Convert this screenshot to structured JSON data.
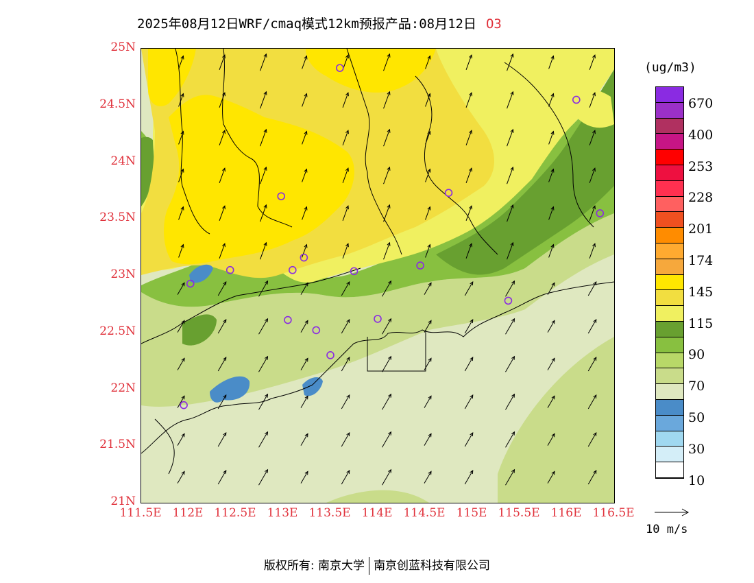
{
  "title": {
    "text": "2025年08月12日WRF/cmaq模式12km预报产品:08月12日",
    "species": "O3"
  },
  "axes": {
    "y_ticks": [
      "25N",
      "24.5N",
      "24N",
      "23.5N",
      "23N",
      "22.5N",
      "22N",
      "21.5N",
      "21N"
    ],
    "x_ticks": [
      "111.5E",
      "112E",
      "112.5E",
      "113E",
      "113.5E",
      "114E",
      "114.5E",
      "115E",
      "115.5E",
      "116E",
      "116.5E"
    ]
  },
  "legend": {
    "units": "(ug/m3)",
    "colors": [
      "#8a2be2",
      "#9b30c8",
      "#b03060",
      "#c71585",
      "#ff0000",
      "#ee1040",
      "#ff3050",
      "#ff6060",
      "#f05020",
      "#ff8c00",
      "#ffaa30",
      "#f6a83c",
      "#ffe600",
      "#f2de40",
      "#f0f060",
      "#68a030",
      "#88c040",
      "#b8d868",
      "#c9dc8a",
      "#dfe8c0",
      "#4a8cc8",
      "#6aa8dc",
      "#a0d8f0",
      "#d4eef8",
      "#ffffff"
    ],
    "labels": [
      "670",
      "400",
      "253",
      "228",
      "201",
      "174",
      "145",
      "115",
      "90",
      "70",
      "50",
      "30",
      "10"
    ]
  },
  "wind": {
    "reference_label": "10  m/s"
  },
  "footer": {
    "left": "版权所有: 南京大学",
    "right": "南京创蓝科技有限公司"
  },
  "map": {
    "lon_range": [
      111.5,
      116.5
    ],
    "lat_range": [
      21,
      25
    ],
    "station_markers": [
      [
        113.6,
        24.83
      ],
      [
        116.1,
        24.55
      ],
      [
        114.75,
        23.73
      ],
      [
        116.35,
        23.55
      ],
      [
        112.98,
        23.7
      ],
      [
        112.44,
        23.05
      ],
      [
        113.1,
        23.05
      ],
      [
        113.22,
        23.16
      ],
      [
        113.75,
        23.04
      ],
      [
        114.45,
        23.09
      ],
      [
        112.02,
        22.93
      ],
      [
        115.38,
        22.78
      ],
      [
        113.05,
        22.61
      ],
      [
        113.35,
        22.52
      ],
      [
        114.0,
        22.62
      ],
      [
        113.5,
        22.3
      ],
      [
        111.95,
        21.86
      ]
    ]
  }
}
